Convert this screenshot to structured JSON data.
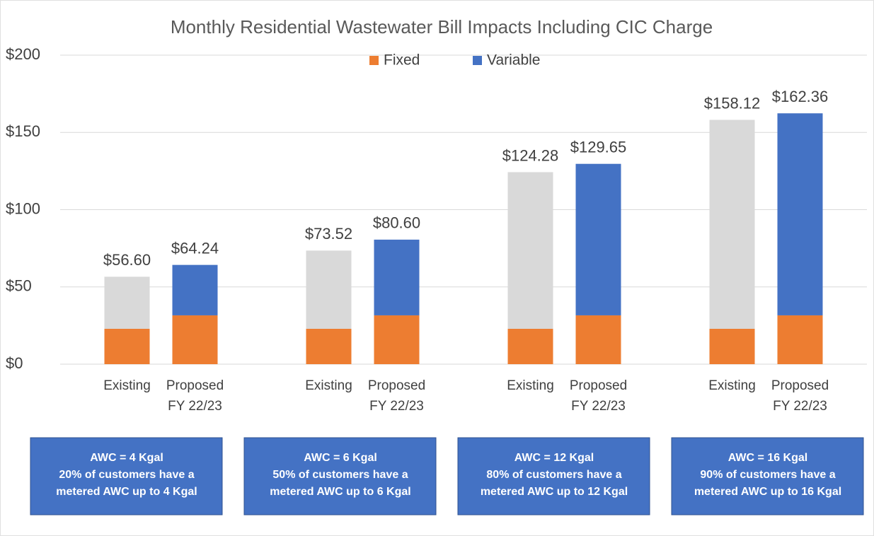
{
  "chart_data": {
    "type": "bar",
    "stacked": true,
    "title": "Monthly Residential Wastewater Bill Impacts Including CIC Charge",
    "categories": [
      "Existing",
      "Proposed FY 22/23",
      "Existing",
      "Proposed FY 22/23",
      "Existing",
      "Proposed FY 22/23",
      "Existing",
      "Proposed FY 22/23"
    ],
    "groups_of": 2,
    "series": [
      {
        "name": "Fixed",
        "color": "#ED7D31",
        "values": [
          22.9,
          31.6,
          22.9,
          31.6,
          22.9,
          31.6,
          22.9,
          31.6
        ]
      },
      {
        "name": "Variable",
        "color": "#4472C4",
        "colors": [
          "#D9D9D9",
          "#4472C4",
          "#D9D9D9",
          "#4472C4",
          "#D9D9D9",
          "#4472C4",
          "#D9D9D9",
          "#4472C4"
        ],
        "values": [
          33.7,
          32.64,
          50.62,
          49.0,
          101.38,
          98.05,
          135.22,
          130.76
        ]
      }
    ],
    "totals": [
      56.6,
      64.24,
      73.52,
      80.6,
      124.28,
      129.65,
      158.12,
      162.36
    ],
    "total_labels": [
      "$56.60",
      "$64.24",
      "$73.52",
      "$80.60",
      "$124.28",
      "$129.65",
      "$158.12",
      "$162.36"
    ],
    "ylim": [
      0,
      200
    ],
    "yticks": [
      {
        "value": 0,
        "label": "$0"
      },
      {
        "value": 50,
        "label": "$50"
      },
      {
        "value": 100,
        "label": "$100"
      },
      {
        "value": 150,
        "label": "$150"
      },
      {
        "value": 200,
        "label": "$200"
      }
    ],
    "grid": true,
    "legend": "top",
    "annotations": [
      {
        "lines": [
          "AWC = 4 Kgal",
          "20% of customers have a",
          "metered AWC up to 4 Kgal"
        ]
      },
      {
        "lines": [
          "AWC = 6 Kgal",
          "50% of customers have a",
          "metered AWC up to 6 Kgal"
        ]
      },
      {
        "lines": [
          "AWC = 12 Kgal",
          "80% of customers have a",
          "metered AWC up to 12 Kgal"
        ]
      },
      {
        "lines": [
          "AWC = 16 Kgal",
          "90% of customers have a",
          "metered AWC up to 16 Kgal"
        ]
      }
    ],
    "annotation_color": "#4472C4"
  }
}
